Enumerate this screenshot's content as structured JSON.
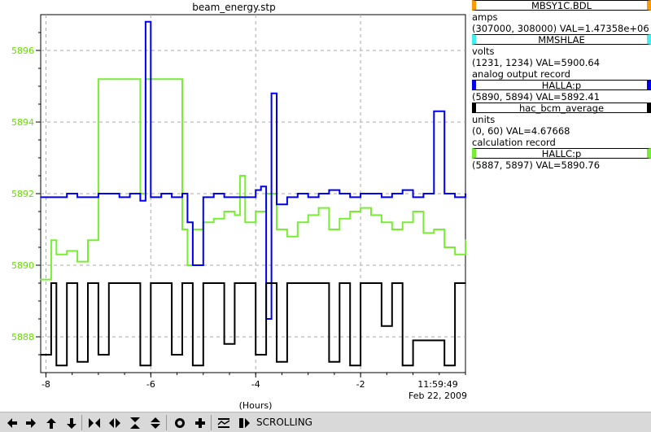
{
  "title": "beam_energy.stp",
  "xaxis": {
    "label": "(Hours)",
    "ticks": [
      "-8",
      "-6",
      "-4",
      "-2"
    ],
    "time": "11:59:49",
    "date": "Feb 22, 2009"
  },
  "yaxis": {
    "ticks": [
      "5896",
      "5894",
      "5892",
      "5890",
      "5888"
    ],
    "color": "#66dd00"
  },
  "legend": [
    {
      "name": "MBSY1C.BDL",
      "color": "#ff9900",
      "lines": [
        "amps",
        "(307000, 308000)  VAL=1.47358e+06"
      ]
    },
    {
      "name": "MMSHLAE",
      "color": "#44eeee",
      "lines": [
        "volts",
        "(1231, 1234)  VAL=5900.64",
        "analog output record"
      ]
    },
    {
      "name": "HALLA:p",
      "color": "#0000ee",
      "lines": [
        "(5890, 5894)  VAL=5892.41"
      ]
    },
    {
      "name": "hac_bcm_average",
      "color": "#000000",
      "lines": [
        "units",
        "(0, 60)  VAL=4.67668",
        "calculation record"
      ]
    },
    {
      "name": "HALLC:p",
      "color": "#77ee33",
      "lines": [
        "(5887, 5897)  VAL=5890.76"
      ]
    }
  ],
  "toolbar": {
    "status": "SCROLLING",
    "buttons": [
      "arrow-left-icon",
      "arrow-right-icon",
      "arrow-up-icon",
      "arrow-down-icon",
      "zoom-in-horizontal-icon",
      "zoom-out-horizontal-icon",
      "zoom-in-vertical-icon",
      "zoom-out-vertical-icon",
      "record-icon",
      "plus-icon",
      "autoscale-icon",
      "pause-icon"
    ]
  },
  "chart_data": {
    "type": "line",
    "title": "beam_energy.stp",
    "xlabel": "(Hours)",
    "xlim": [
      -8.1,
      0.0
    ],
    "ylim": [
      5887.0,
      5897.0
    ],
    "grid": true,
    "series": [
      {
        "name": "HALLC:p",
        "color": "#77ee33",
        "x": [
          -8.1,
          -7.9,
          -7.8,
          -7.6,
          -7.4,
          -7.2,
          -7.0,
          -6.8,
          -6.6,
          -6.3,
          -6.2,
          -6.1,
          -6.0,
          -5.8,
          -5.6,
          -5.4,
          -5.3,
          -5.2,
          -5.0,
          -4.8,
          -4.6,
          -4.4,
          -4.3,
          -4.2,
          -4.0,
          -3.8,
          -3.6,
          -3.4,
          -3.2,
          -3.0,
          -2.8,
          -2.6,
          -2.4,
          -2.2,
          -2.0,
          -1.8,
          -1.6,
          -1.4,
          -1.2,
          -1.0,
          -0.8,
          -0.6,
          -0.4,
          -0.2,
          0.0
        ],
        "y": [
          5889.6,
          5890.7,
          5890.3,
          5890.4,
          5890.1,
          5890.7,
          5895.2,
          5895.2,
          5895.2,
          5895.2,
          5892.0,
          5895.2,
          5895.2,
          5895.2,
          5895.2,
          5891.0,
          5890.0,
          5891.0,
          5891.2,
          5891.3,
          5891.5,
          5891.4,
          5892.5,
          5891.2,
          5891.5,
          5892.0,
          5891.0,
          5890.8,
          5891.2,
          5891.4,
          5891.6,
          5891.0,
          5891.3,
          5891.5,
          5891.6,
          5891.4,
          5891.2,
          5891.0,
          5891.2,
          5891.5,
          5890.9,
          5891.0,
          5890.5,
          5890.3,
          5890.7
        ]
      },
      {
        "name": "HALLA:p",
        "color": "#0000ee",
        "x": [
          -8.1,
          -7.8,
          -7.6,
          -7.4,
          -7.2,
          -7.0,
          -6.8,
          -6.6,
          -6.4,
          -6.2,
          -6.1,
          -6.0,
          -5.8,
          -5.6,
          -5.4,
          -5.3,
          -5.2,
          -5.0,
          -4.8,
          -4.6,
          -4.4,
          -4.2,
          -4.0,
          -3.9,
          -3.8,
          -3.7,
          -3.6,
          -3.4,
          -3.2,
          -3.0,
          -2.8,
          -2.6,
          -2.4,
          -2.2,
          -2.0,
          -1.8,
          -1.6,
          -1.4,
          -1.2,
          -1.0,
          -0.8,
          -0.6,
          -0.4,
          -0.2,
          0.0
        ],
        "y": [
          5891.9,
          5891.9,
          5892.0,
          5891.9,
          5891.9,
          5892.0,
          5892.0,
          5891.9,
          5892.0,
          5891.8,
          5896.8,
          5891.9,
          5892.0,
          5891.9,
          5892.0,
          5891.2,
          5890.0,
          5891.9,
          5892.0,
          5891.9,
          5891.9,
          5891.9,
          5892.1,
          5892.2,
          5888.5,
          5894.8,
          5891.7,
          5891.9,
          5892.0,
          5891.9,
          5892.0,
          5892.1,
          5892.0,
          5891.9,
          5892.0,
          5892.0,
          5891.9,
          5892.0,
          5892.1,
          5891.9,
          5892.0,
          5894.3,
          5892.0,
          5891.9,
          5892.0
        ]
      },
      {
        "name": "hac_bcm_average",
        "color": "#000000",
        "x": [
          -8.1,
          -7.9,
          -7.8,
          -7.6,
          -7.4,
          -7.2,
          -7.0,
          -6.8,
          -6.6,
          -6.4,
          -6.2,
          -6.0,
          -5.8,
          -5.6,
          -5.4,
          -5.2,
          -5.0,
          -4.8,
          -4.6,
          -4.4,
          -4.2,
          -4.0,
          -3.8,
          -3.6,
          -3.4,
          -3.2,
          -3.0,
          -2.8,
          -2.6,
          -2.4,
          -2.2,
          -2.0,
          -1.8,
          -1.6,
          -1.4,
          -1.2,
          -1.0,
          -0.8,
          -0.6,
          -0.4,
          -0.2,
          0.0
        ],
        "y": [
          5887.5,
          5889.5,
          5887.2,
          5889.5,
          5887.3,
          5889.5,
          5887.5,
          5889.5,
          5889.5,
          5889.5,
          5887.2,
          5889.5,
          5889.5,
          5887.5,
          5889.5,
          5887.2,
          5889.5,
          5889.5,
          5887.8,
          5889.5,
          5889.5,
          5887.5,
          5889.5,
          5887.3,
          5889.5,
          5889.5,
          5889.5,
          5889.5,
          5887.3,
          5889.5,
          5887.2,
          5889.5,
          5889.5,
          5888.3,
          5889.5,
          5887.2,
          5887.9,
          5887.9,
          5887.9,
          5887.2,
          5889.5,
          5889.5
        ]
      }
    ]
  }
}
